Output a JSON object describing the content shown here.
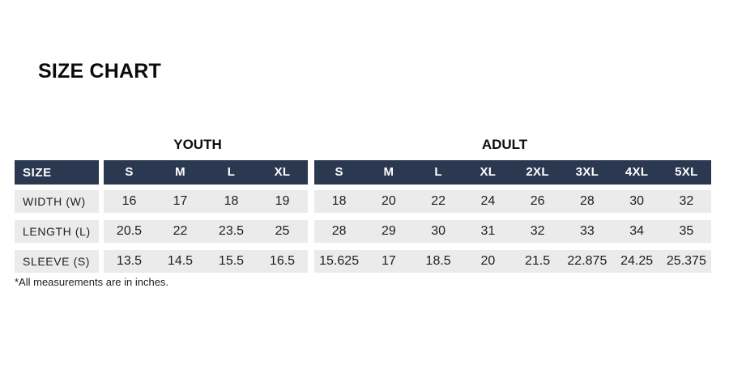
{
  "page": {
    "title": "SIZE CHART",
    "footnote": "*All measurements are in inches."
  },
  "chart_data": {
    "type": "table",
    "title": "SIZE CHART",
    "units_note": "*All measurements are in inches.",
    "corner_label": "SIZE",
    "groups": [
      {
        "name": "YOUTH",
        "columns": [
          "S",
          "M",
          "L",
          "XL"
        ]
      },
      {
        "name": "ADULT",
        "columns": [
          "S",
          "M",
          "L",
          "XL",
          "2XL",
          "3XL",
          "4XL",
          "5XL"
        ]
      }
    ],
    "rows": [
      {
        "label": "WIDTH (W)",
        "youth": [
          "16",
          "17",
          "18",
          "19"
        ],
        "adult": [
          "18",
          "20",
          "22",
          "24",
          "26",
          "28",
          "30",
          "32"
        ]
      },
      {
        "label": "LENGTH (L)",
        "youth": [
          "20.5",
          "22",
          "23.5",
          "25"
        ],
        "adult": [
          "28",
          "29",
          "30",
          "31",
          "32",
          "33",
          "34",
          "35"
        ]
      },
      {
        "label": "SLEEVE (S)",
        "youth": [
          "13.5",
          "14.5",
          "15.5",
          "16.5"
        ],
        "adult": [
          "15.625",
          "17",
          "18.5",
          "20",
          "21.5",
          "22.875",
          "24.25",
          "25.375"
        ]
      }
    ],
    "colors": {
      "header_bg": "#2b3950",
      "header_text": "#ffffff",
      "row_bg": "#ebebeb",
      "body_text": "#1f1f1f"
    }
  }
}
